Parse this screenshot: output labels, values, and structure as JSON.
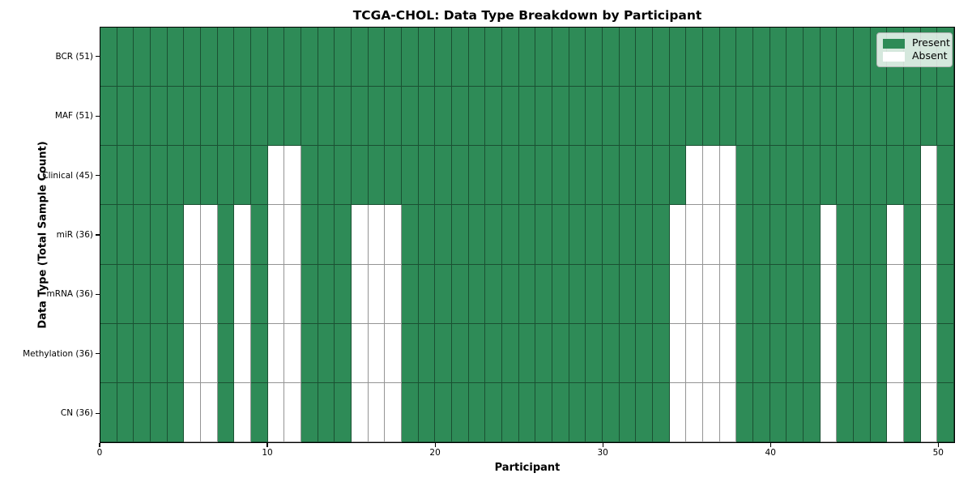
{
  "chart_data": {
    "type": "heatmap",
    "title": "TCGA-CHOL: Data Type Breakdown by Participant",
    "xlabel": "Participant",
    "ylabel": "Data Type (Total Sample Count)",
    "n_participants": 51,
    "x_range": [
      0,
      51
    ],
    "x_ticks": [
      0,
      10,
      20,
      30,
      40,
      50
    ],
    "grid": true,
    "colors": {
      "present": "#2e8b57",
      "absent": "#ffffff",
      "cell_edge": "rgba(0,0,0,0.42)"
    },
    "legend": {
      "position": "upper right",
      "entries": [
        {
          "label": "Present",
          "color": "#2e8b57"
        },
        {
          "label": "Absent",
          "color": "#ffffff"
        }
      ]
    },
    "rows": [
      {
        "label": "BCR (51)",
        "data_type": "BCR",
        "present_count": 51,
        "absent_participants": []
      },
      {
        "label": "MAF (51)",
        "data_type": "MAF",
        "present_count": 51,
        "absent_participants": []
      },
      {
        "label": "Clinical (45)",
        "data_type": "Clinical",
        "present_count": 45,
        "absent_participants": [
          10,
          11,
          35,
          36,
          37,
          49
        ]
      },
      {
        "label": "miR (36)",
        "data_type": "miR",
        "present_count": 36,
        "absent_participants": [
          5,
          6,
          8,
          10,
          11,
          15,
          16,
          17,
          34,
          35,
          36,
          37,
          43,
          47,
          49
        ]
      },
      {
        "label": "mRNA (36)",
        "data_type": "mRNA",
        "present_count": 36,
        "absent_participants": [
          5,
          6,
          8,
          10,
          11,
          15,
          16,
          17,
          34,
          35,
          36,
          37,
          43,
          47,
          49
        ]
      },
      {
        "label": "Methylation (36)",
        "data_type": "Methylation",
        "present_count": 36,
        "absent_participants": [
          5,
          6,
          8,
          10,
          11,
          15,
          16,
          17,
          34,
          35,
          36,
          37,
          43,
          47,
          49
        ]
      },
      {
        "label": "CN (36)",
        "data_type": "CN",
        "present_count": 36,
        "absent_participants": [
          5,
          6,
          8,
          10,
          11,
          15,
          16,
          17,
          34,
          35,
          36,
          37,
          43,
          47,
          49
        ]
      }
    ]
  }
}
